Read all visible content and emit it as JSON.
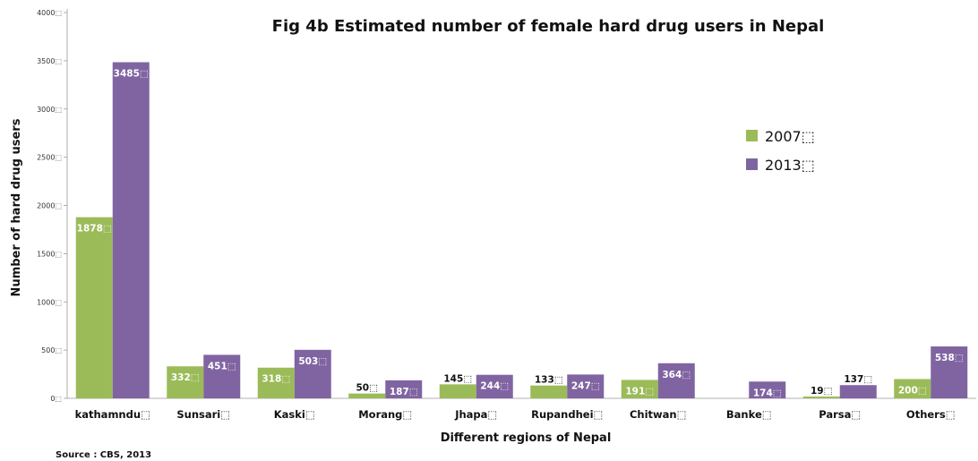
{
  "chart_data": {
    "type": "bar",
    "title": "Fig 4b  Estimated number of female hard drug users in Nepal",
    "xlabel": "Different regions of Nepal",
    "ylabel": "Number of hard drug users",
    "ylim": [
      0,
      4000
    ],
    "yticks": [
      "0⬚",
      "500⬚",
      "1000⬚",
      "1500⬚",
      "2000⬚",
      "2500⬚",
      "3000⬚",
      "3500⬚",
      "4000⬚"
    ],
    "ytick_values": [
      0,
      500,
      1000,
      1500,
      2000,
      2500,
      3000,
      3500,
      4000
    ],
    "categories": [
      "kathamndu⬚",
      "Sunsari⬚",
      "Kaski⬚",
      "Morang⬚",
      "Jhapa⬚",
      "Rupandhei⬚",
      "Chitwan⬚",
      "Banke⬚",
      "Parsa⬚",
      "Others⬚"
    ],
    "series": [
      {
        "name": "2007⬚",
        "color": "#9BBB59",
        "values": [
          1878,
          332,
          318,
          50,
          145,
          133,
          191,
          null,
          19,
          200
        ],
        "labels": [
          "1878⬚",
          "332⬚",
          "318⬚",
          "50⬚",
          "145⬚",
          "133⬚",
          "191⬚",
          "",
          "19⬚",
          "200⬚"
        ]
      },
      {
        "name": "2013⬚",
        "color": "#8064A2",
        "values": [
          3485,
          451,
          503,
          187,
          244,
          247,
          364,
          174,
          137,
          538
        ],
        "labels": [
          "3485⬚",
          "451⬚",
          "503⬚",
          "187⬚",
          "244⬚",
          "247⬚",
          "364⬚",
          "174⬚",
          "137⬚",
          "538⬚"
        ]
      }
    ],
    "grid": false,
    "legend": "right"
  },
  "source": "Source : CBS, 2013"
}
